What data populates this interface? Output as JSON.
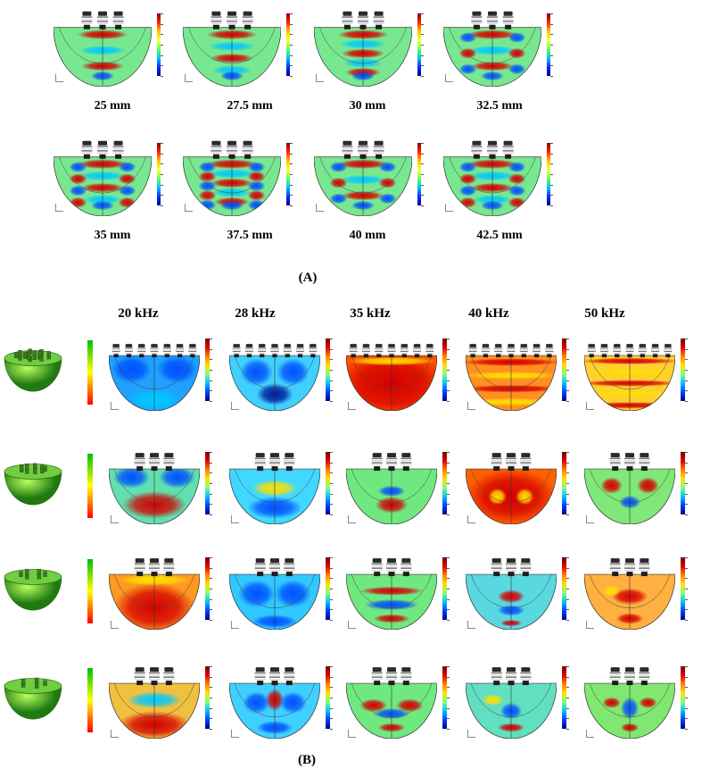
{
  "panel_a": {
    "label": "(A)",
    "row1": [
      "25 mm",
      "27.5 mm",
      "30 mm",
      "32.5 mm"
    ],
    "row2": [
      "35 mm",
      "37.5 mm",
      "40 mm",
      "42.5 mm"
    ]
  },
  "panel_b": {
    "label": "(B)",
    "frequencies": [
      "20 kHz",
      "28 kHz",
      "35 kHz",
      "40 kHz",
      "50 kHz"
    ]
  }
}
